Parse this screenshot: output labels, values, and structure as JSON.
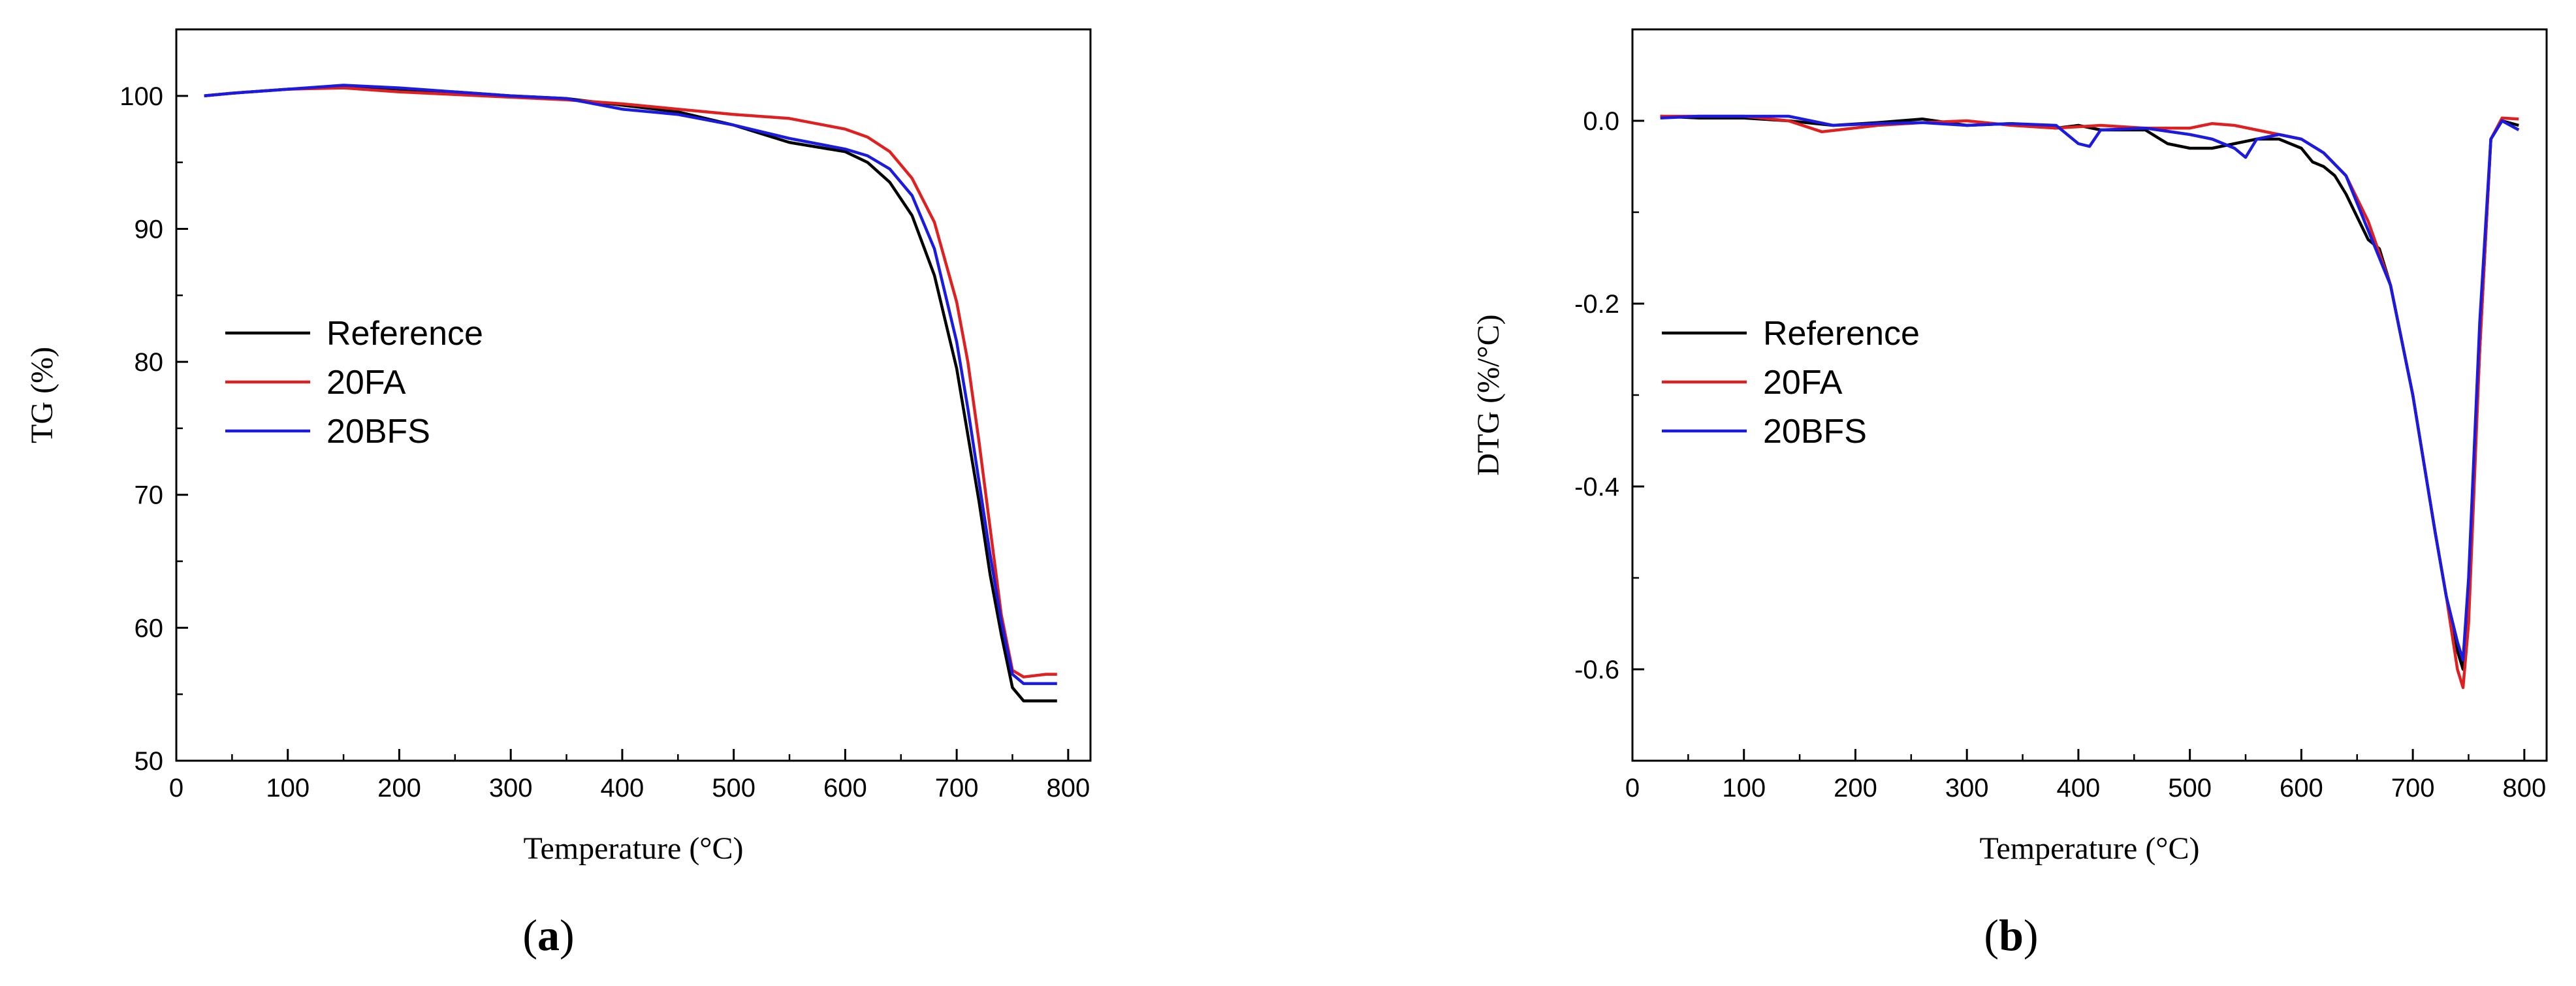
{
  "chart_data": [
    {
      "type": "line",
      "panel_label": "a",
      "xlabel": "Temperature (°C)",
      "ylabel": "TG (%)",
      "xlim": [
        0,
        820
      ],
      "ylim": [
        50,
        105
      ],
      "xticks": [
        0,
        100,
        200,
        300,
        400,
        500,
        600,
        700,
        800
      ],
      "yticks": [
        50,
        60,
        70,
        80,
        90,
        100
      ],
      "legend_position": "center-left",
      "grid": false,
      "series": [
        {
          "name": "Reference",
          "color": "#000000",
          "x": [
            25,
            50,
            100,
            150,
            200,
            250,
            300,
            350,
            400,
            450,
            500,
            550,
            600,
            620,
            640,
            660,
            680,
            700,
            710,
            720,
            730,
            740,
            750,
            760,
            770,
            780,
            790
          ],
          "y": [
            100.0,
            100.2,
            100.5,
            100.7,
            100.5,
            100.3,
            100.0,
            99.8,
            99.3,
            98.8,
            97.8,
            96.5,
            95.8,
            95.0,
            93.5,
            91.0,
            86.5,
            79.5,
            74.5,
            69.5,
            64.0,
            59.5,
            55.5,
            54.5,
            54.5,
            54.5,
            54.5
          ]
        },
        {
          "name": "20FA",
          "color": "#e02020",
          "x": [
            25,
            50,
            100,
            150,
            200,
            250,
            300,
            350,
            400,
            450,
            500,
            550,
            600,
            620,
            640,
            660,
            680,
            700,
            710,
            720,
            730,
            740,
            750,
            760,
            770,
            780,
            790
          ],
          "y": [
            100.0,
            100.2,
            100.5,
            100.6,
            100.3,
            100.1,
            99.9,
            99.7,
            99.4,
            99.0,
            98.6,
            98.3,
            97.5,
            96.9,
            95.8,
            93.8,
            90.5,
            84.5,
            80.0,
            74.0,
            67.5,
            61.0,
            56.8,
            56.3,
            56.4,
            56.5,
            56.5
          ]
        },
        {
          "name": "20BFS",
          "color": "#1a1ae0",
          "x": [
            25,
            50,
            100,
            150,
            200,
            250,
            300,
            350,
            400,
            450,
            500,
            550,
            600,
            620,
            640,
            660,
            680,
            700,
            710,
            720,
            730,
            740,
            750,
            760,
            770,
            780,
            790
          ],
          "y": [
            100.0,
            100.2,
            100.5,
            100.8,
            100.6,
            100.3,
            100.0,
            99.8,
            99.0,
            98.6,
            97.8,
            96.8,
            96.0,
            95.5,
            94.5,
            92.5,
            88.5,
            81.5,
            76.5,
            71.0,
            65.5,
            60.5,
            56.5,
            55.8,
            55.8,
            55.8,
            55.8
          ]
        }
      ]
    },
    {
      "type": "line",
      "panel_label": "b",
      "xlabel": "Temperature (°C)",
      "ylabel": "DTG (%/°C)",
      "xlim": [
        0,
        820
      ],
      "ylim": [
        -0.7,
        0.1
      ],
      "xticks": [
        0,
        100,
        200,
        300,
        400,
        500,
        600,
        700,
        800
      ],
      "yticks": [
        -0.6,
        -0.4,
        -0.2,
        0.0
      ],
      "ytick_labels": [
        "-0.6",
        "-0.4",
        "-0.2",
        "0.0"
      ],
      "legend_position": "center-left",
      "grid": false,
      "series": [
        {
          "name": "Reference",
          "color": "#000000",
          "x": [
            25,
            60,
            100,
            140,
            180,
            220,
            260,
            300,
            340,
            380,
            400,
            420,
            460,
            480,
            500,
            520,
            540,
            560,
            580,
            600,
            610,
            620,
            630,
            640,
            660,
            670,
            680,
            700,
            720,
            730,
            740,
            745,
            750,
            760,
            770,
            780,
            795
          ],
          "y": [
            0.005,
            0.003,
            0.003,
            0.0,
            -0.005,
            -0.002,
            0.002,
            -0.005,
            -0.003,
            -0.008,
            -0.005,
            -0.01,
            -0.01,
            -0.025,
            -0.03,
            -0.03,
            -0.025,
            -0.02,
            -0.02,
            -0.03,
            -0.045,
            -0.05,
            -0.06,
            -0.08,
            -0.13,
            -0.14,
            -0.18,
            -0.3,
            -0.45,
            -0.52,
            -0.58,
            -0.6,
            -0.52,
            -0.25,
            -0.02,
            0.0,
            -0.005
          ]
        },
        {
          "name": "20FA",
          "color": "#e02020",
          "x": [
            25,
            60,
            100,
            140,
            170,
            220,
            260,
            300,
            340,
            380,
            420,
            460,
            500,
            520,
            540,
            560,
            580,
            600,
            620,
            640,
            660,
            680,
            700,
            720,
            730,
            740,
            745,
            750,
            760,
            770,
            780,
            795
          ],
          "y": [
            0.005,
            0.005,
            0.005,
            0.0,
            -0.012,
            -0.005,
            -0.002,
            0.0,
            -0.005,
            -0.008,
            -0.005,
            -0.008,
            -0.008,
            -0.003,
            -0.005,
            -0.01,
            -0.015,
            -0.02,
            -0.035,
            -0.06,
            -0.11,
            -0.18,
            -0.3,
            -0.45,
            -0.52,
            -0.6,
            -0.62,
            -0.55,
            -0.25,
            -0.02,
            0.003,
            0.002
          ]
        },
        {
          "name": "20BFS",
          "color": "#1a1ae0",
          "x": [
            25,
            60,
            100,
            140,
            180,
            220,
            260,
            300,
            340,
            380,
            395,
            400,
            410,
            420,
            460,
            500,
            520,
            540,
            550,
            560,
            580,
            600,
            620,
            640,
            660,
            680,
            700,
            720,
            730,
            740,
            745,
            750,
            760,
            770,
            780,
            795
          ],
          "y": [
            0.003,
            0.005,
            0.005,
            0.005,
            -0.005,
            -0.003,
            -0.002,
            -0.005,
            -0.003,
            -0.005,
            -0.02,
            -0.025,
            -0.028,
            -0.01,
            -0.008,
            -0.015,
            -0.02,
            -0.03,
            -0.04,
            -0.02,
            -0.015,
            -0.02,
            -0.035,
            -0.06,
            -0.12,
            -0.18,
            -0.3,
            -0.45,
            -0.52,
            -0.57,
            -0.59,
            -0.5,
            -0.22,
            -0.02,
            0.0,
            -0.01
          ]
        }
      ]
    }
  ]
}
